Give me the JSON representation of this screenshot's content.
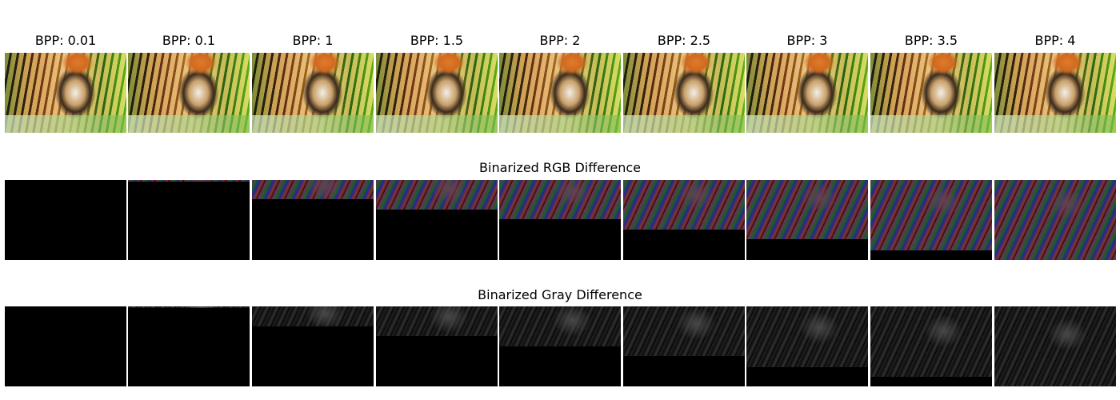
{
  "columns": [
    {
      "label": "BPP: 0.01",
      "rgb_fraction": 0.0,
      "gray_fraction": 0.0
    },
    {
      "label": "BPP: 0.1",
      "rgb_fraction": 0.02,
      "gray_fraction": 0.02
    },
    {
      "label": "BPP: 1",
      "rgb_fraction": 0.24,
      "gray_fraction": 0.25
    },
    {
      "label": "BPP: 1.5",
      "rgb_fraction": 0.37,
      "gray_fraction": 0.37
    },
    {
      "label": "BPP: 2",
      "rgb_fraction": 0.49,
      "gray_fraction": 0.5
    },
    {
      "label": "BPP: 2.5",
      "rgb_fraction": 0.62,
      "gray_fraction": 0.62
    },
    {
      "label": "BPP: 3",
      "rgb_fraction": 0.74,
      "gray_fraction": 0.76
    },
    {
      "label": "BPP: 3.5",
      "rgb_fraction": 0.88,
      "gray_fraction": 0.88
    },
    {
      "label": "BPP: 4",
      "rgb_fraction": 1.0,
      "gray_fraction": 1.0
    }
  ],
  "rows": {
    "rgb_title": "Binarized RGB Difference",
    "gray_title": "Binarized Gray Difference"
  }
}
